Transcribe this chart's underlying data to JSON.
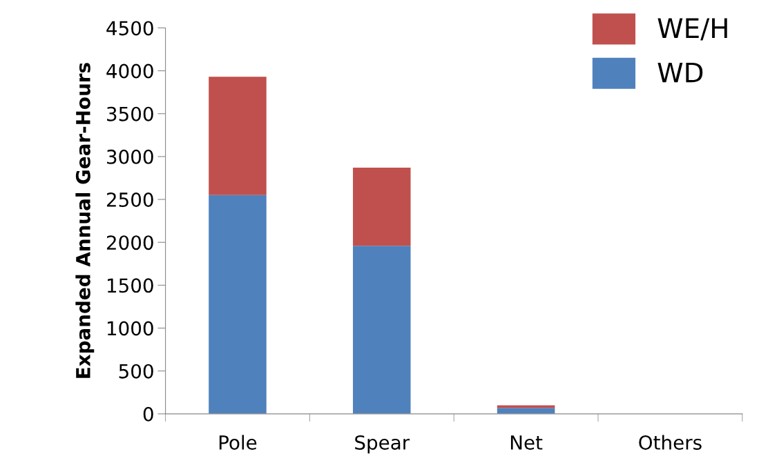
{
  "chart_data": {
    "type": "bar",
    "stacked": true,
    "ylabel": "Expanded Annual Gear-Hours",
    "categories": [
      "Pole",
      "Spear",
      "Net",
      "Others"
    ],
    "series": [
      {
        "name": "WD",
        "color": "#4f81bd",
        "values": [
          2550,
          1960,
          70,
          null
        ]
      },
      {
        "name": "WE/H",
        "color": "#c0504d",
        "values": [
          1380,
          910,
          30,
          null
        ]
      }
    ],
    "ylim": [
      0,
      4500
    ],
    "yticks": [
      0,
      500,
      1000,
      1500,
      2000,
      2500,
      3000,
      3500,
      4000,
      4500
    ],
    "grid": false,
    "legend": "top right"
  }
}
